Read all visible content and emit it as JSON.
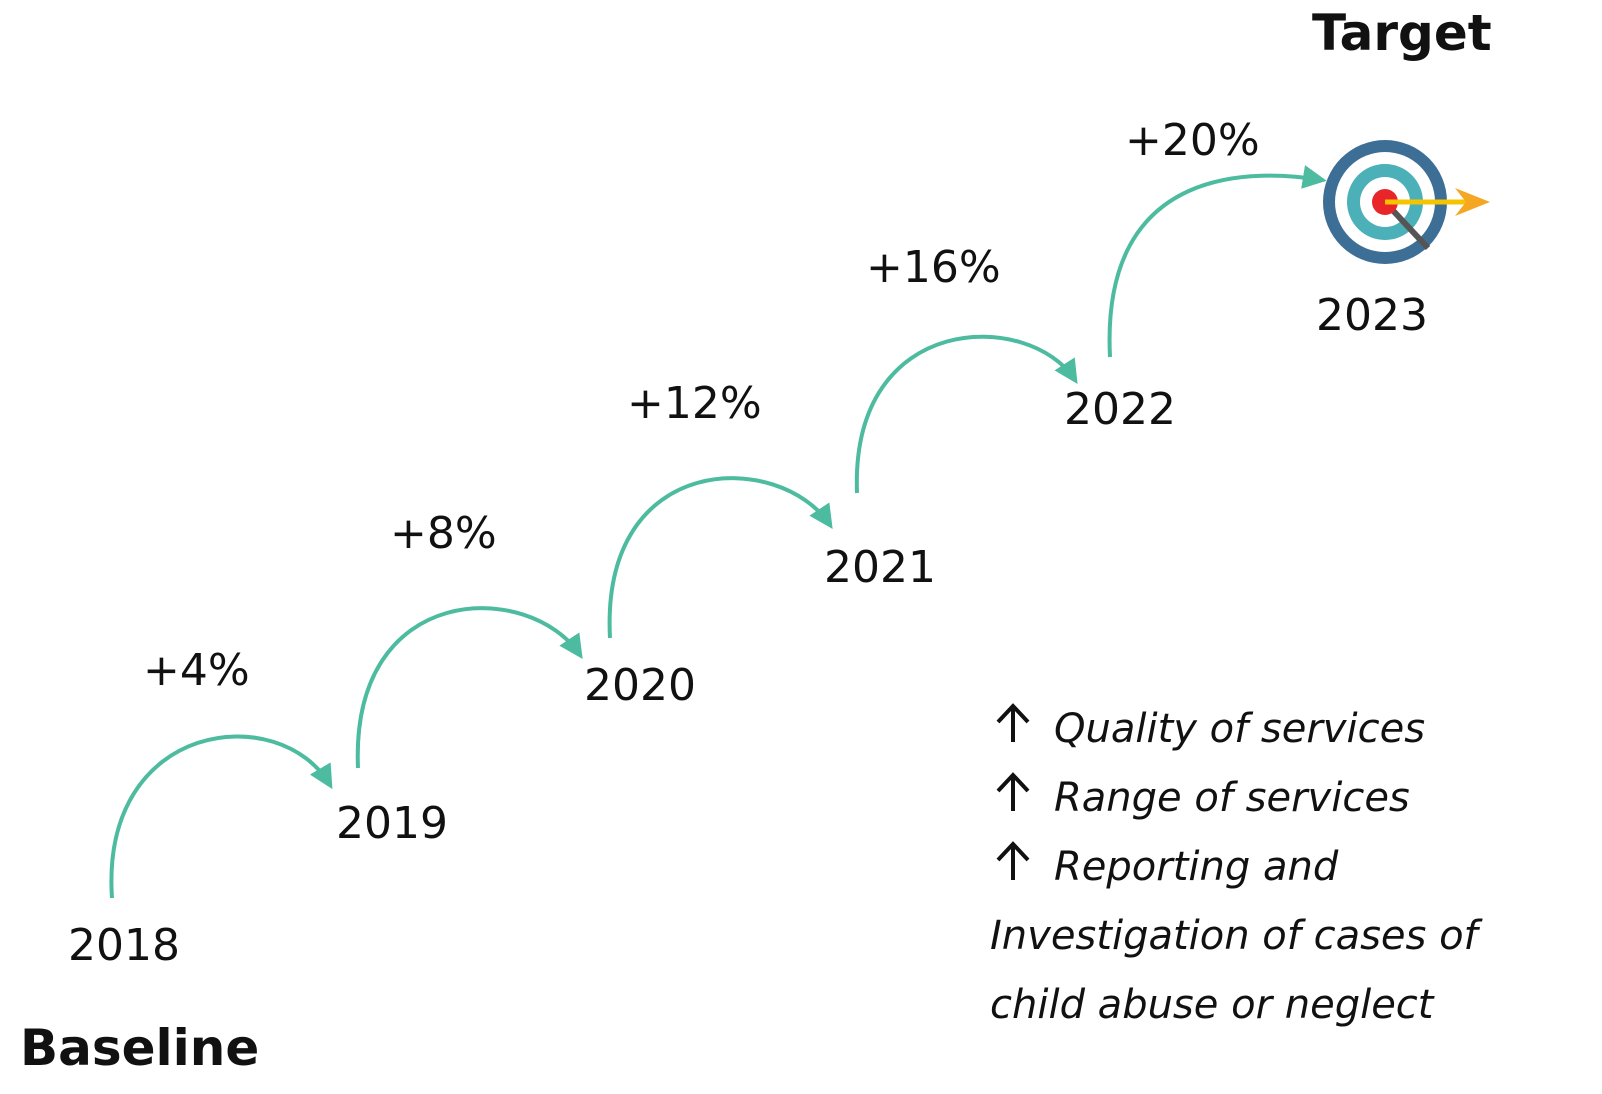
{
  "target_label": "Target",
  "baseline_label": "Baseline",
  "years": [
    "2018",
    "2019",
    "2020",
    "2021",
    "2022",
    "2023"
  ],
  "increments": [
    "+4%",
    "+8%",
    "+12%",
    "+16%",
    "+20%"
  ],
  "notes": [
    "Quality of services",
    "Range of services",
    "Reporting and",
    "Investigation of cases of",
    "child abuse or neglect"
  ]
}
